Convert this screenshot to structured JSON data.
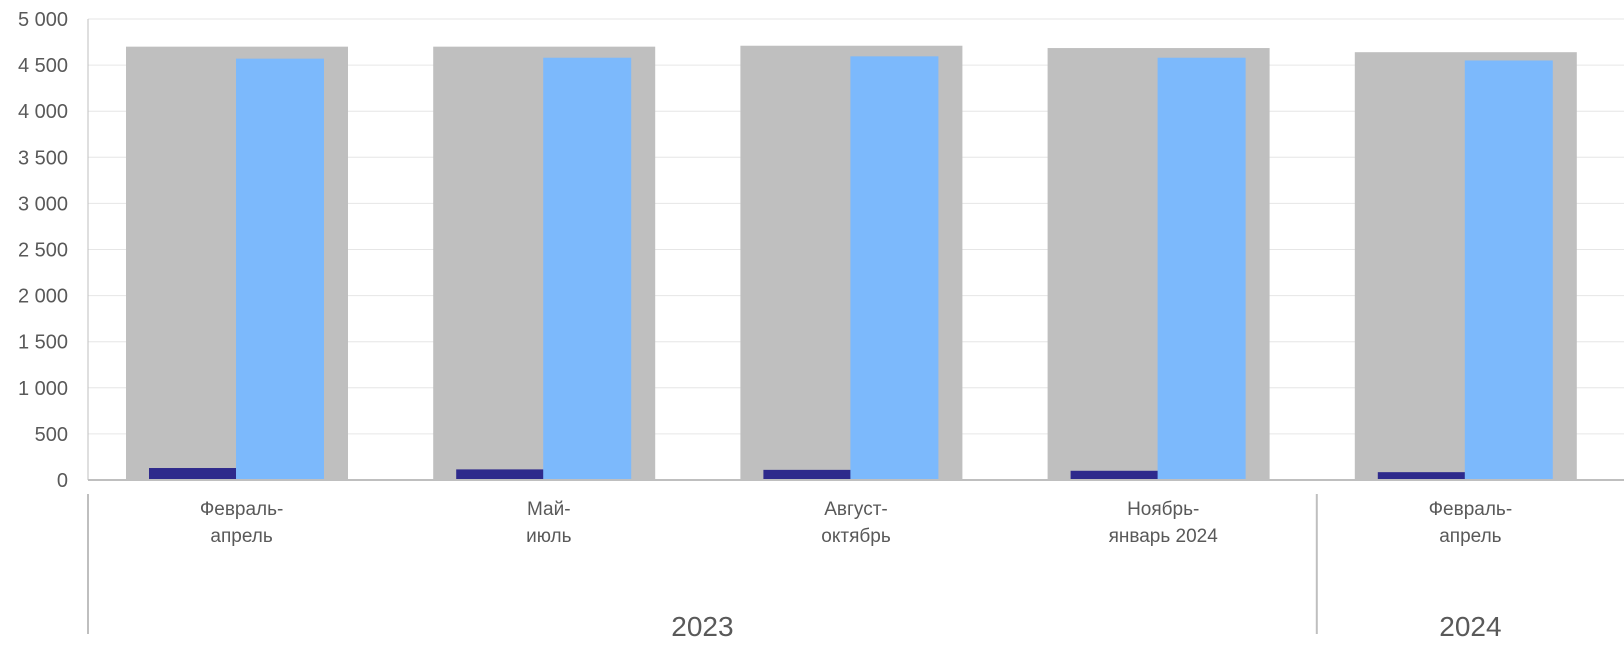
{
  "chart_data": {
    "type": "bar",
    "categories": [
      {
        "line1": "Февраль-",
        "line2": "апрель"
      },
      {
        "line1": "Май-",
        "line2": "июль"
      },
      {
        "line1": "Август-",
        "line2": "октябрь"
      },
      {
        "line1": "Ноябрь-",
        "line2": "январь 2024"
      },
      {
        "line1": "Февраль-",
        "line2": "апрель"
      }
    ],
    "groups": [
      {
        "label": "2023",
        "span": 4
      },
      {
        "label": "2024",
        "span": 1
      }
    ],
    "series": [
      {
        "values": [
          4700,
          4700,
          4710,
          4685,
          4640
        ],
        "color": "#bfbfbf"
      },
      {
        "values": [
          130,
          115,
          110,
          100,
          85
        ],
        "color": "#2e2a8c"
      },
      {
        "values": [
          4570,
          4580,
          4595,
          4580,
          4550
        ],
        "color": "#7cb9fc"
      }
    ],
    "ylim": [
      0,
      5000
    ],
    "yticks": [
      0,
      500,
      1000,
      1500,
      2000,
      2500,
      3000,
      3500,
      4000,
      4500,
      5000
    ],
    "ytick_labels": [
      "0",
      "500",
      "1 000",
      "1 500",
      "2 000",
      "2 500",
      "3 000",
      "3 500",
      "4 000",
      "4 500",
      "5 000"
    ],
    "grid": true,
    "legend": "none"
  }
}
